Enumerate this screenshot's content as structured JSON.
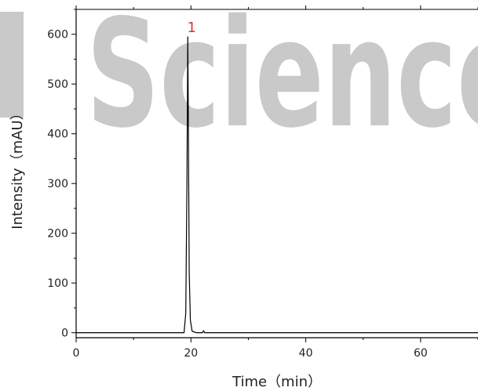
{
  "watermark": "Science",
  "chart_data": {
    "type": "line",
    "xlabel": "Time（min）",
    "ylabel": "Intensity（mAU）",
    "xlim": [
      0,
      70
    ],
    "ylim": [
      -10,
      650
    ],
    "x_ticks": [
      0,
      20,
      40,
      60
    ],
    "y_ticks": [
      0,
      100,
      200,
      300,
      400,
      500,
      600
    ],
    "grid": false,
    "series": [
      {
        "x": [
          0,
          5,
          10,
          15,
          18.8,
          19.1,
          19.3,
          19.45,
          19.55,
          19.7,
          19.9,
          20.2,
          21,
          22,
          22.2,
          22.4,
          25,
          30,
          40,
          50,
          60,
          70
        ],
        "values": [
          0,
          0,
          0,
          0,
          0,
          40,
          300,
          595,
          420,
          120,
          25,
          3,
          0,
          0,
          4,
          0,
          0,
          0,
          0,
          0,
          0,
          0
        ]
      }
    ],
    "annotations": [
      {
        "text": "1",
        "x": 19.45,
        "y": 595
      }
    ]
  },
  "colors": {
    "line": "#000000",
    "annotation": "#e03030",
    "watermark": "#c9c9c9"
  }
}
